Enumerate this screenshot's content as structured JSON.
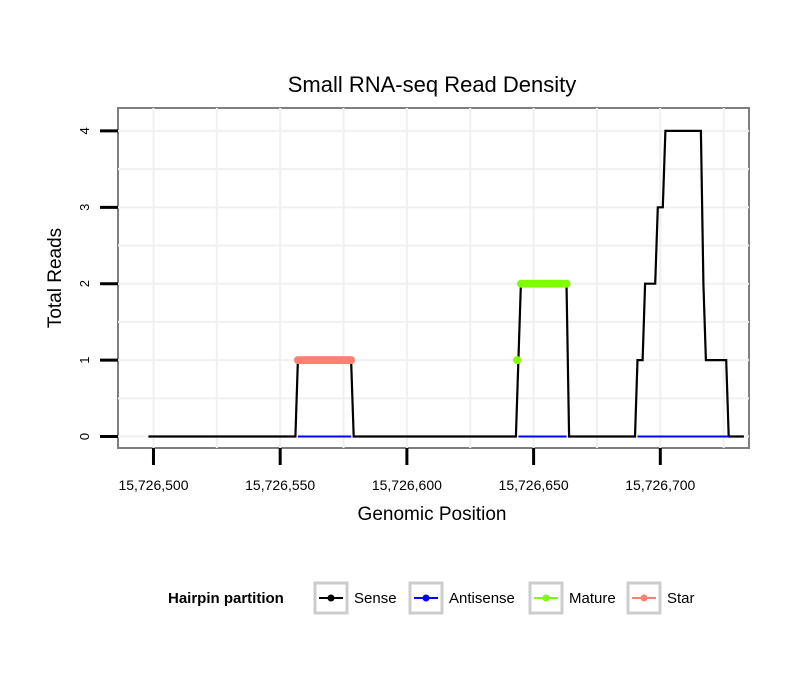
{
  "chart_data": {
    "type": "line",
    "title": "Small RNA-seq Read Density",
    "xlabel": "Genomic Position",
    "ylabel": "Total Reads",
    "xlim": [
      15726486,
      15726735
    ],
    "ylim": [
      -0.15,
      4.3
    ],
    "grid": true,
    "x_ticks": [
      15726500,
      15726550,
      15726600,
      15726650,
      15726700
    ],
    "x_tick_labels": [
      "15,726,500",
      "15,726,550",
      "15,726,600",
      "15,726,650",
      "15,726,700"
    ],
    "y_ticks": [
      0,
      1,
      2,
      3,
      4
    ],
    "y_tick_labels": [
      "0",
      "1",
      "2",
      "3",
      "4"
    ],
    "legend": {
      "title": "Hairpin partition",
      "position": "bottom",
      "entries": [
        {
          "name": "Sense",
          "color": "#000000"
        },
        {
          "name": "Antisense",
          "color": "#0000ff"
        },
        {
          "name": "Mature",
          "color": "#7fff00"
        },
        {
          "name": "Star",
          "color": "#fa8072"
        }
      ]
    },
    "series": [
      {
        "name": "Sense",
        "color": "#000000",
        "x": [
          15726498,
          15726556,
          15726557,
          15726578,
          15726579,
          15726643,
          15726644,
          15726645,
          15726656,
          15726663,
          15726664,
          15726690,
          15726691,
          15726693,
          15726694,
          15726698,
          15726699,
          15726701,
          15726702,
          15726716,
          15726717,
          15726718,
          15726726,
          15726727,
          15726733
        ],
        "y": [
          0,
          0,
          1,
          1,
          0,
          0,
          1,
          2,
          2,
          2,
          0,
          0,
          1,
          1,
          2,
          2,
          3,
          3,
          4,
          4,
          2,
          1,
          1,
          0,
          0
        ]
      },
      {
        "name": "Antisense",
        "color": "#0000ff",
        "x": [
          15726557,
          15726578,
          15726644,
          15726663,
          15726691,
          15726727
        ],
        "y": [
          0,
          0,
          0,
          0,
          0,
          0
        ],
        "segments": [
          [
            15726557,
            15726578
          ],
          [
            15726644,
            15726663
          ],
          [
            15726691,
            15726727
          ]
        ]
      },
      {
        "name": "Mature",
        "color": "#7fff00",
        "x": [
          15726643.5,
          15726645,
          15726646,
          15726647,
          15726648,
          15726649,
          15726650,
          15726651,
          15726652,
          15726653,
          15726654,
          15726655,
          15726656,
          15726657,
          15726658,
          15726659,
          15726660,
          15726661,
          15726662,
          15726663
        ],
        "y": [
          1,
          2,
          2,
          2,
          2,
          2,
          2,
          2,
          2,
          2,
          2,
          2,
          2,
          2,
          2,
          2,
          2,
          2,
          2,
          2
        ]
      },
      {
        "name": "Star",
        "color": "#fa8072",
        "x": [
          15726557,
          15726558,
          15726559,
          15726560,
          15726561,
          15726562,
          15726563,
          15726564,
          15726565,
          15726566,
          15726567,
          15726568,
          15726569,
          15726570,
          15726571,
          15726572,
          15726573,
          15726574,
          15726575,
          15726576,
          15726577,
          15726578
        ],
        "y": [
          1,
          1,
          1,
          1,
          1,
          1,
          1,
          1,
          1,
          1,
          1,
          1,
          1,
          1,
          1,
          1,
          1,
          1,
          1,
          1,
          1,
          1
        ]
      }
    ]
  }
}
